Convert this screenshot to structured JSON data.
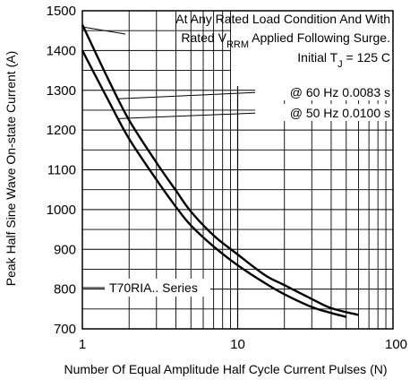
{
  "colors": {
    "background": "#ffffff",
    "grid": "#000000",
    "curve": "#000000"
  },
  "chart_data": {
    "type": "line",
    "xscale": "log",
    "xlim": [
      1,
      100
    ],
    "ylim": [
      700,
      1500
    ],
    "grid": true,
    "xlabel": "Number Of Equal Amplitude Half Cycle Current Pulses (N)",
    "ylabel": "Peak Half Sine Wave On-state Current (A)",
    "x_ticks": [
      {
        "value": 1,
        "label": "1"
      },
      {
        "value": 10,
        "label": "10"
      },
      {
        "value": 100,
        "label": "100"
      }
    ],
    "y_ticks": [
      {
        "value": 700,
        "label": "700"
      },
      {
        "value": 800,
        "label": "800"
      },
      {
        "value": 900,
        "label": "900"
      },
      {
        "value": 1000,
        "label": "1000"
      },
      {
        "value": 1100,
        "label": "1100"
      },
      {
        "value": 1200,
        "label": "1200"
      },
      {
        "value": 1300,
        "label": "1300"
      },
      {
        "value": 1400,
        "label": "1400"
      },
      {
        "value": 1500,
        "label": "1500"
      }
    ],
    "series": [
      {
        "name": "@ 60 Hz 0.0083 s",
        "points": [
          [
            1,
            1465
          ],
          [
            1.5,
            1320
          ],
          [
            2,
            1225
          ],
          [
            3,
            1118
          ],
          [
            4,
            1048
          ],
          [
            5,
            995
          ],
          [
            7,
            935
          ],
          [
            10,
            887
          ],
          [
            15,
            835
          ],
          [
            20,
            810
          ],
          [
            30,
            775
          ],
          [
            40,
            752
          ],
          [
            60,
            735
          ]
        ]
      },
      {
        "name": "@ 50 Hz 0.0100 s",
        "points": [
          [
            1,
            1400
          ],
          [
            1.5,
            1268
          ],
          [
            2,
            1178
          ],
          [
            3,
            1075
          ],
          [
            4,
            1007
          ],
          [
            5,
            960
          ],
          [
            7,
            907
          ],
          [
            10,
            860
          ],
          [
            15,
            815
          ],
          [
            20,
            787
          ],
          [
            30,
            755
          ],
          [
            40,
            740
          ],
          [
            50,
            730
          ]
        ]
      }
    ],
    "annotations": {
      "condition_line_1": "At Any Rated Load Condition And With",
      "condition_line_2_prefix": "Rated V",
      "condition_line_2_sub": "RRM",
      "condition_line_2_suffix": " Applied Following Surge.",
      "initial_prefix": "Initial T",
      "initial_sub": "J",
      "initial_suffix": " = 125 C",
      "series_tag": "T70RIA.. Series"
    }
  }
}
